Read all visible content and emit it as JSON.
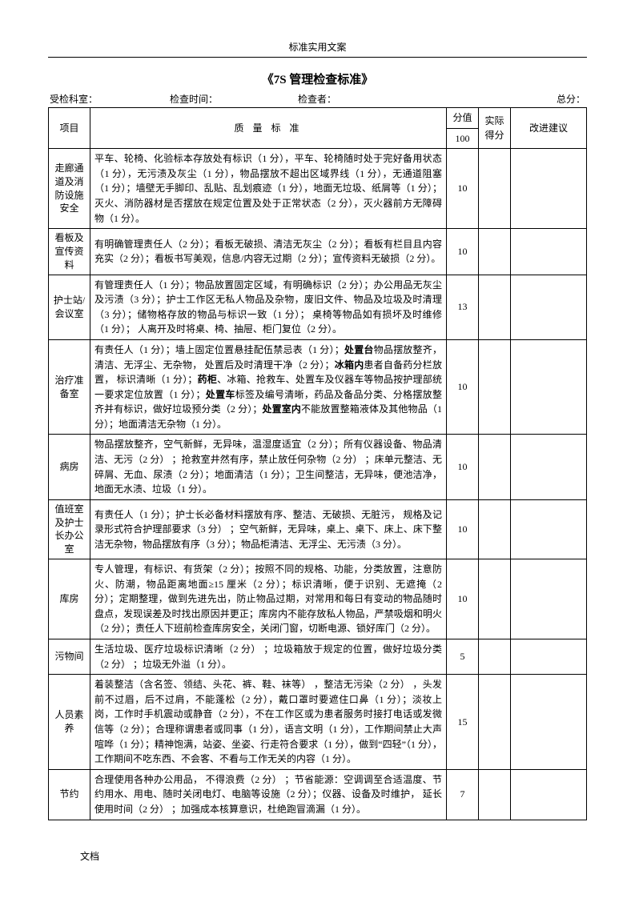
{
  "page_header": "标准实用文案",
  "title": "《7S 管理检查标准》",
  "meta": {
    "department_label": "受检科室：",
    "time_label": "检查时间：",
    "checker_label": "检查者：",
    "total_label": "总分："
  },
  "header": {
    "project": "项目",
    "standard": "质 量 标 准",
    "score": "分值",
    "score_total": "100",
    "actual": "实际得分",
    "suggest": "改进建议"
  },
  "rows": [
    {
      "project": "走廊通道及消防设施安全",
      "standard": "平车、轮椅、化验标本存放处有标识（1 分），平车、轮椅随时处于完好备用状态（1 分），无污渍及灰尘（1 分），物品摆放不超出区域界线（1 分），无通道阻塞（1 分）；墙壁无手脚印、乱贴、乱划痕迹（1 分），地面无垃圾、纸屑等（1 分）；灭火、消防器材是否摆放在规定位置及处于正常状态（2 分），灭火器前方无障碍物（1 分）。",
      "score": "10"
    },
    {
      "project": "看板及宣传资料",
      "standard": "有明确管理责任人（2 分）；看板无破损、清洁无灰尘（2 分）；看板有栏目且内容充实（2 分）；看板书写美观，信息/内容无过期（2 分）；宣传资料无破损（2 分）。",
      "score": "10"
    },
    {
      "project": "护士站/会议室",
      "standard": "有管理责任人（1 分）；物品放置固定区域，有明确标识（2 分）；办公用品无灰尘及污渍（3 分）；护士工作区无私人物品及杂物，废旧文件、物品及垃圾及时清理 （3 分）；储物格存放的物品与标识一致（1 分）； 桌椅等物品如有损坏及时维修（1 分）； 人离开及时将桌、椅、抽屉、柜门复位（2 分）。",
      "score": "13"
    },
    {
      "project": "治疗准备室",
      "standard": "有责任人（1 分）；墙上固定位置悬挂配伍禁忌表（1 分）；<b>处置台</b>物品摆放整齐， 清洁、无浮尘、无杂物， 处置后及时清理干净（2 分）；<b>冰箱内</b>患者自备药分栏放置， 标识清晰（1 分）；<b>药柜</b>、冰箱、抢救车、处置车及仪器车等物品按护理部统一要求定位放置（1 分）；<b>处置车</b>标签及编号清晰，药品及备品分类、分格摆放整齐并有标识，做好垃圾预分类（2 分）；<b>处置室内</b>不能放置整箱液体及其他物品（1 分）；地面清洁无杂物（1 分）。",
      "score": "10"
    },
    {
      "project": "病房",
      "standard": "物品摆放整齐，空气新鲜，无异味，温湿度适宜（2 分）；所有仪器设备、物品清洁、无污（2 分） ；抢救室井然有序，禁止放任何杂物（2 分） ；床单元整洁、无碎屑、无血、尿渍（2 分）；地面清洁（1 分）；卫生间整洁，无异味，便池洁净，地面无水渍、垃圾（1 分）。",
      "score": "10"
    },
    {
      "project": "值班室及护士长办公室",
      "standard": "有责任人（1 分）；护士长必备材料摆放有序、整洁、无破损、无脏污， 规格及记录形式符合护理部要求（3 分） ；空气新鲜，无异味，桌上、桌下、床上、床下整洁无杂物，物品摆放有序（3 分）；物品柜清洁、无浮尘、无污渍（3 分）。",
      "score": "10"
    },
    {
      "project": "库房",
      "standard": "专人管理，有标识、有货架（2 分）；按照不同的规格、功能，分类放置，注意防火、防潮，物品距离地面≥15 厘米（2 分）；标识清晰，便于识别、无遮掩（2 分）；定期整理，做到先进先出，防止物品过期，对常用和每日有变动的物品随时盘点，发现误差及时找出原因并更正；库房内不能存放私人物品，严禁吸烟和明火（2 分）；责任人下班前检查库房安全，关闭门窗，切断电源、锁好库门（2 分）。",
      "score": "10"
    },
    {
      "project": "污物间",
      "standard": "生活垃圾、医疗垃圾标识清晰（2 分） ；垃圾箱放于规定的位置，做好垃圾分类（2 分） ；垃圾无外溢（1 分）。",
      "score": "5"
    },
    {
      "project": "人员素养",
      "standard": "着装整洁（含名签、领结、头花、裤、鞋、袜等） ，整洁无污染（2 分） ，头发前不过眉，后不过肩，不能蓬松（2 分），戴口罩时要遮住口鼻（1 分）；淡妆上岗，工作时手机震动或静音（2 分），不在工作区或为患者服务时接打电话或发微信等（2 分）；合理称谓患者或同事（1 分），语言文明（1 分），工作期间禁止大声喧哗（1 分）；精神饱满，站姿、坐姿、行走符合要求（1 分），做到“四轻”（1 分），工作期间不吃东西、不会客、不看与工作无关的内容（1 分）。",
      "score": "15"
    },
    {
      "project": "节约",
      "standard": "合理使用各种办公用品， 不得浪费（2 分） ；节省能源：空调调至合适温度、节约用水、用电、随时关闭电灯、电脑等设施（2 分）；仪器、设备及时维护， 延长使用时间（2 分） ；加强成本核算意识，杜绝跑冒滴漏（1 分）。",
      "score": "7"
    }
  ],
  "footer": "文档"
}
